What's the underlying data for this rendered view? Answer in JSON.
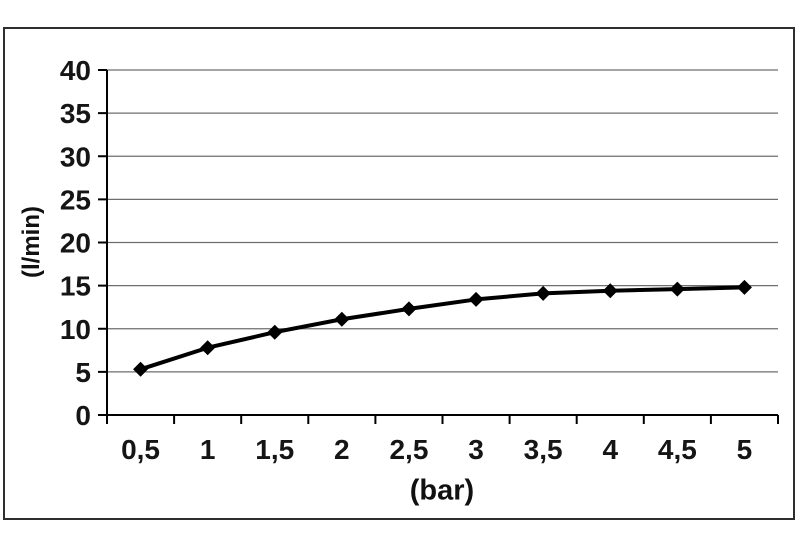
{
  "chart_data": {
    "type": "line",
    "title": "",
    "xlabel": "(bar)",
    "ylabel": "(l/min)",
    "categories": [
      "0,5",
      "1",
      "1,5",
      "2",
      "2,5",
      "3",
      "3,5",
      "4",
      "4,5",
      "5"
    ],
    "x": [
      0.5,
      1,
      1.5,
      2,
      2.5,
      3,
      3.5,
      4,
      4.5,
      5
    ],
    "values": [
      5.3,
      7.8,
      9.6,
      11.1,
      12.3,
      13.4,
      14.1,
      14.4,
      14.6,
      14.8
    ],
    "ylim": [
      0,
      40
    ],
    "ytick_step": 5,
    "yticks": [
      "0",
      "5",
      "10",
      "15",
      "20",
      "25",
      "30",
      "35",
      "40"
    ],
    "grid": true,
    "legend": "none",
    "marker": "diamond",
    "line_color": "#000000",
    "marker_color": "#000000",
    "grid_color": "#6e6e6e",
    "axis_color": "#000000",
    "frame_color": "#2e2e2e",
    "background_color": "#ffffff"
  }
}
